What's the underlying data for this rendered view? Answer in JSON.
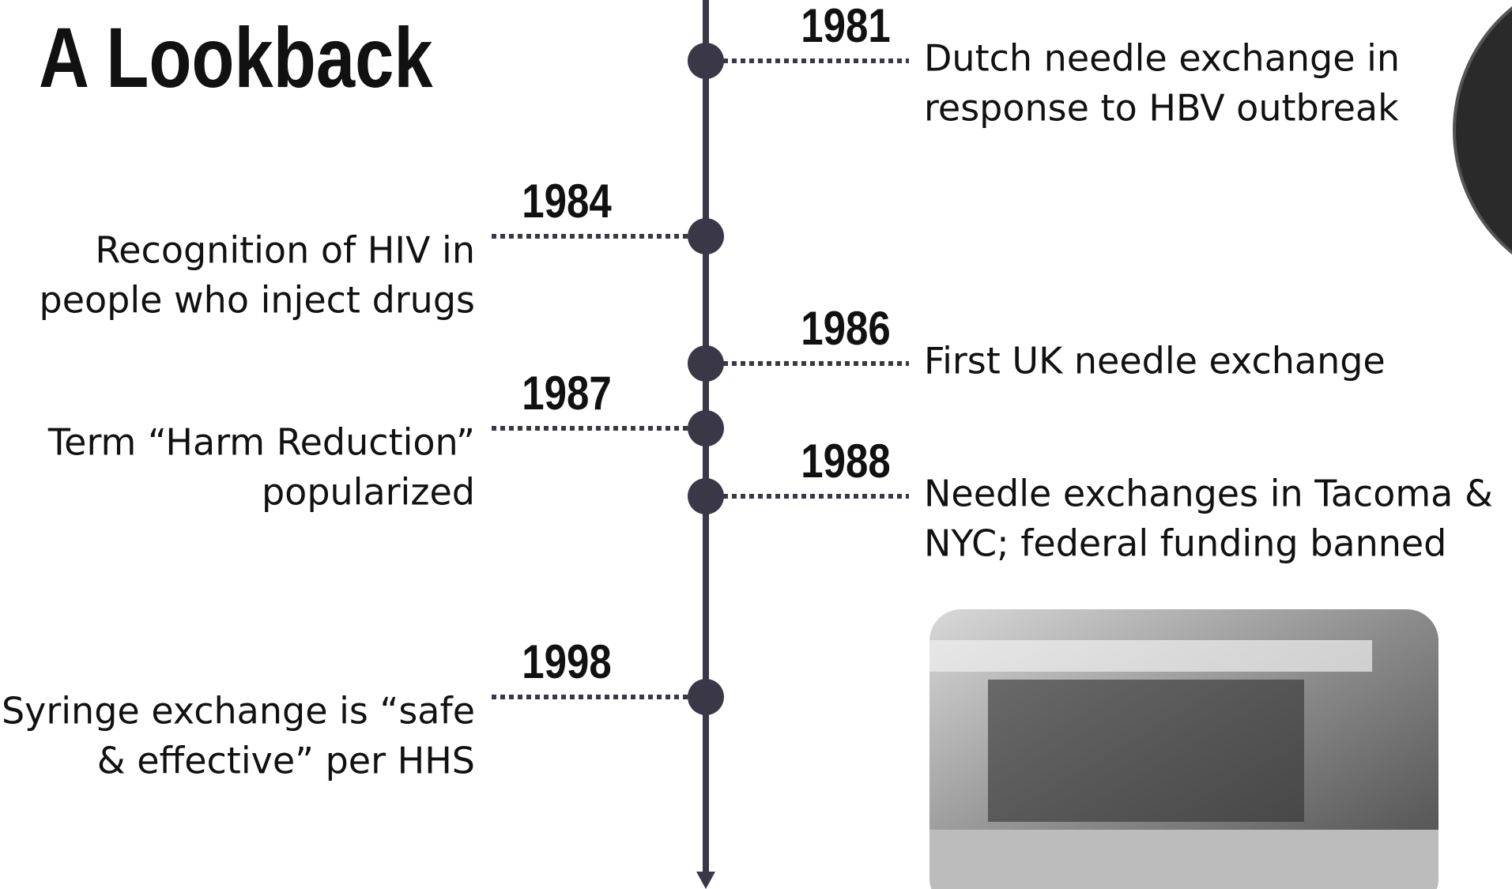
{
  "title": "A Lookback",
  "events": [
    {
      "year": "1981",
      "lines": [
        "Dutch needle exchange in",
        "response to HBV outbreak"
      ]
    },
    {
      "year": "1984",
      "lines": [
        "Recognition of HIV in",
        "people who inject drugs"
      ]
    },
    {
      "year": "1986",
      "lines": [
        "First UK needle exchange"
      ]
    },
    {
      "year": "1987",
      "lines": [
        "Term “Harm Reduction”",
        "popularized"
      ]
    },
    {
      "year": "1988",
      "lines": [
        "Needle exchanges in Tacoma &",
        "NYC; federal funding banned"
      ]
    },
    {
      "year": "1998",
      "lines": [
        "Syringe exchange is “safe",
        "& effective” per HHS"
      ]
    }
  ]
}
